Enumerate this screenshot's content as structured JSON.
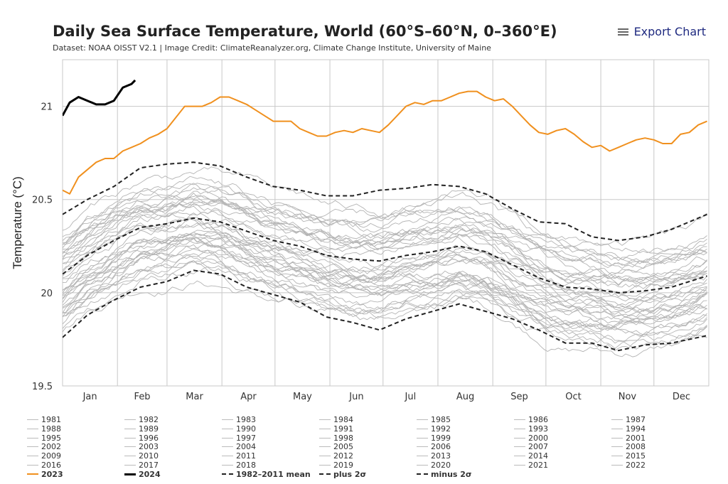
{
  "header": {
    "title": "Daily Sea Surface Temperature, World (60°S–60°N, 0–360°E)",
    "subtitle": "Dataset: NOAA OISST V2.1 | Image Credit: ClimateReanalyzer.org, Climate Change Institute, University of Maine",
    "export_label": "Export Chart"
  },
  "colors": {
    "year_2023": "#f0901e",
    "year_2024": "#000000",
    "other_years": "#b4b4b4",
    "stats": "#222222"
  },
  "chart_data": {
    "type": "line",
    "ylabel": "Temperature (°C)",
    "ylim": [
      19.5,
      21.25
    ],
    "y_ticks": [
      "19.5",
      "20",
      "20.5",
      "21"
    ],
    "months": [
      "Jan",
      "Feb",
      "Mar",
      "Apr",
      "May",
      "Jun",
      "Jul",
      "Aug",
      "Sep",
      "Oct",
      "Nov",
      "Dec"
    ],
    "grid": true,
    "legend_position": "bottom",
    "series": [
      {
        "name": "2023",
        "style": "solid-orange",
        "x": [
          1,
          5,
          10,
          15,
          20,
          25,
          30,
          35,
          40,
          45,
          50,
          55,
          60,
          65,
          70,
          75,
          80,
          85,
          90,
          95,
          100,
          105,
          110,
          115,
          120,
          125,
          130,
          135,
          140,
          145,
          150,
          155,
          160,
          165,
          170,
          175,
          180,
          185,
          190,
          195,
          200,
          205,
          210,
          215,
          220,
          225,
          230,
          235,
          240,
          245,
          250,
          255,
          260,
          265,
          270,
          275,
          280,
          285,
          290,
          295,
          300,
          305,
          310,
          315,
          320,
          325,
          330,
          335,
          340,
          345,
          350,
          355,
          360,
          365
        ],
        "y": [
          20.55,
          20.53,
          20.62,
          20.66,
          20.7,
          20.72,
          20.72,
          20.76,
          20.78,
          20.8,
          20.83,
          20.85,
          20.88,
          20.94,
          21.0,
          21.0,
          21.0,
          21.02,
          21.05,
          21.05,
          21.03,
          21.01,
          20.98,
          20.95,
          20.92,
          20.92,
          20.92,
          20.88,
          20.86,
          20.84,
          20.84,
          20.86,
          20.87,
          20.86,
          20.88,
          20.87,
          20.86,
          20.9,
          20.95,
          21.0,
          21.02,
          21.01,
          21.03,
          21.03,
          21.05,
          21.07,
          21.08,
          21.08,
          21.05,
          21.03,
          21.04,
          21.0,
          20.95,
          20.9,
          20.86,
          20.85,
          20.87,
          20.88,
          20.85,
          20.81,
          20.78,
          20.79,
          20.76,
          20.78,
          20.8,
          20.82,
          20.83,
          20.82,
          20.8,
          20.8,
          20.85,
          20.86,
          20.9,
          20.92
        ]
      },
      {
        "name": "2024",
        "style": "solid-black",
        "x": [
          1,
          5,
          10,
          15,
          20,
          25,
          30,
          35,
          40,
          42
        ],
        "y": [
          20.95,
          21.02,
          21.05,
          21.03,
          21.01,
          21.01,
          21.03,
          21.1,
          21.12,
          21.14
        ]
      },
      {
        "name": "1982-2011 mean",
        "style": "dashed",
        "x": [
          1,
          15,
          30,
          45,
          60,
          75,
          90,
          105,
          120,
          135,
          150,
          165,
          180,
          195,
          210,
          225,
          240,
          255,
          270,
          285,
          300,
          315,
          330,
          345,
          365
        ],
        "y": [
          20.1,
          20.2,
          20.28,
          20.35,
          20.37,
          20.4,
          20.38,
          20.33,
          20.28,
          20.25,
          20.2,
          20.18,
          20.17,
          20.2,
          20.22,
          20.25,
          20.22,
          20.15,
          20.08,
          20.03,
          20.02,
          20.0,
          20.01,
          20.03,
          20.09
        ]
      },
      {
        "name": "plus 2σ",
        "style": "dashed",
        "x": [
          1,
          15,
          30,
          45,
          60,
          75,
          90,
          105,
          120,
          135,
          150,
          165,
          180,
          195,
          210,
          225,
          240,
          255,
          270,
          285,
          300,
          315,
          330,
          345,
          365
        ],
        "y": [
          20.42,
          20.5,
          20.57,
          20.67,
          20.69,
          20.7,
          20.68,
          20.62,
          20.57,
          20.55,
          20.52,
          20.52,
          20.55,
          20.56,
          20.58,
          20.57,
          20.53,
          20.45,
          20.38,
          20.37,
          20.3,
          20.28,
          20.3,
          20.34,
          20.42
        ]
      },
      {
        "name": "minus 2σ",
        "style": "dashed",
        "x": [
          1,
          15,
          30,
          45,
          60,
          75,
          90,
          105,
          120,
          135,
          150,
          165,
          180,
          195,
          210,
          225,
          240,
          255,
          270,
          285,
          300,
          315,
          330,
          345,
          365
        ],
        "y": [
          19.76,
          19.88,
          19.96,
          20.03,
          20.06,
          20.12,
          20.1,
          20.03,
          19.99,
          19.95,
          19.87,
          19.84,
          19.8,
          19.86,
          19.9,
          19.94,
          19.9,
          19.86,
          19.8,
          19.73,
          19.73,
          19.69,
          19.72,
          19.73,
          19.77
        ]
      }
    ]
  },
  "legend": [
    "1981",
    "1982",
    "1983",
    "1984",
    "1985",
    "1986",
    "1987",
    "1988",
    "1989",
    "1990",
    "1991",
    "1992",
    "1993",
    "1994",
    "1995",
    "1996",
    "1997",
    "1998",
    "1999",
    "2000",
    "2001",
    "2002",
    "2003",
    "2004",
    "2005",
    "2006",
    "2007",
    "2008",
    "2009",
    "2010",
    "2011",
    "2012",
    "2013",
    "2014",
    "2015",
    "2016",
    "2017",
    "2018",
    "2019",
    "2020",
    "2021",
    "2022",
    "2023",
    "2024",
    "1982–2011 mean",
    "plus 2σ",
    "minus 2σ"
  ]
}
